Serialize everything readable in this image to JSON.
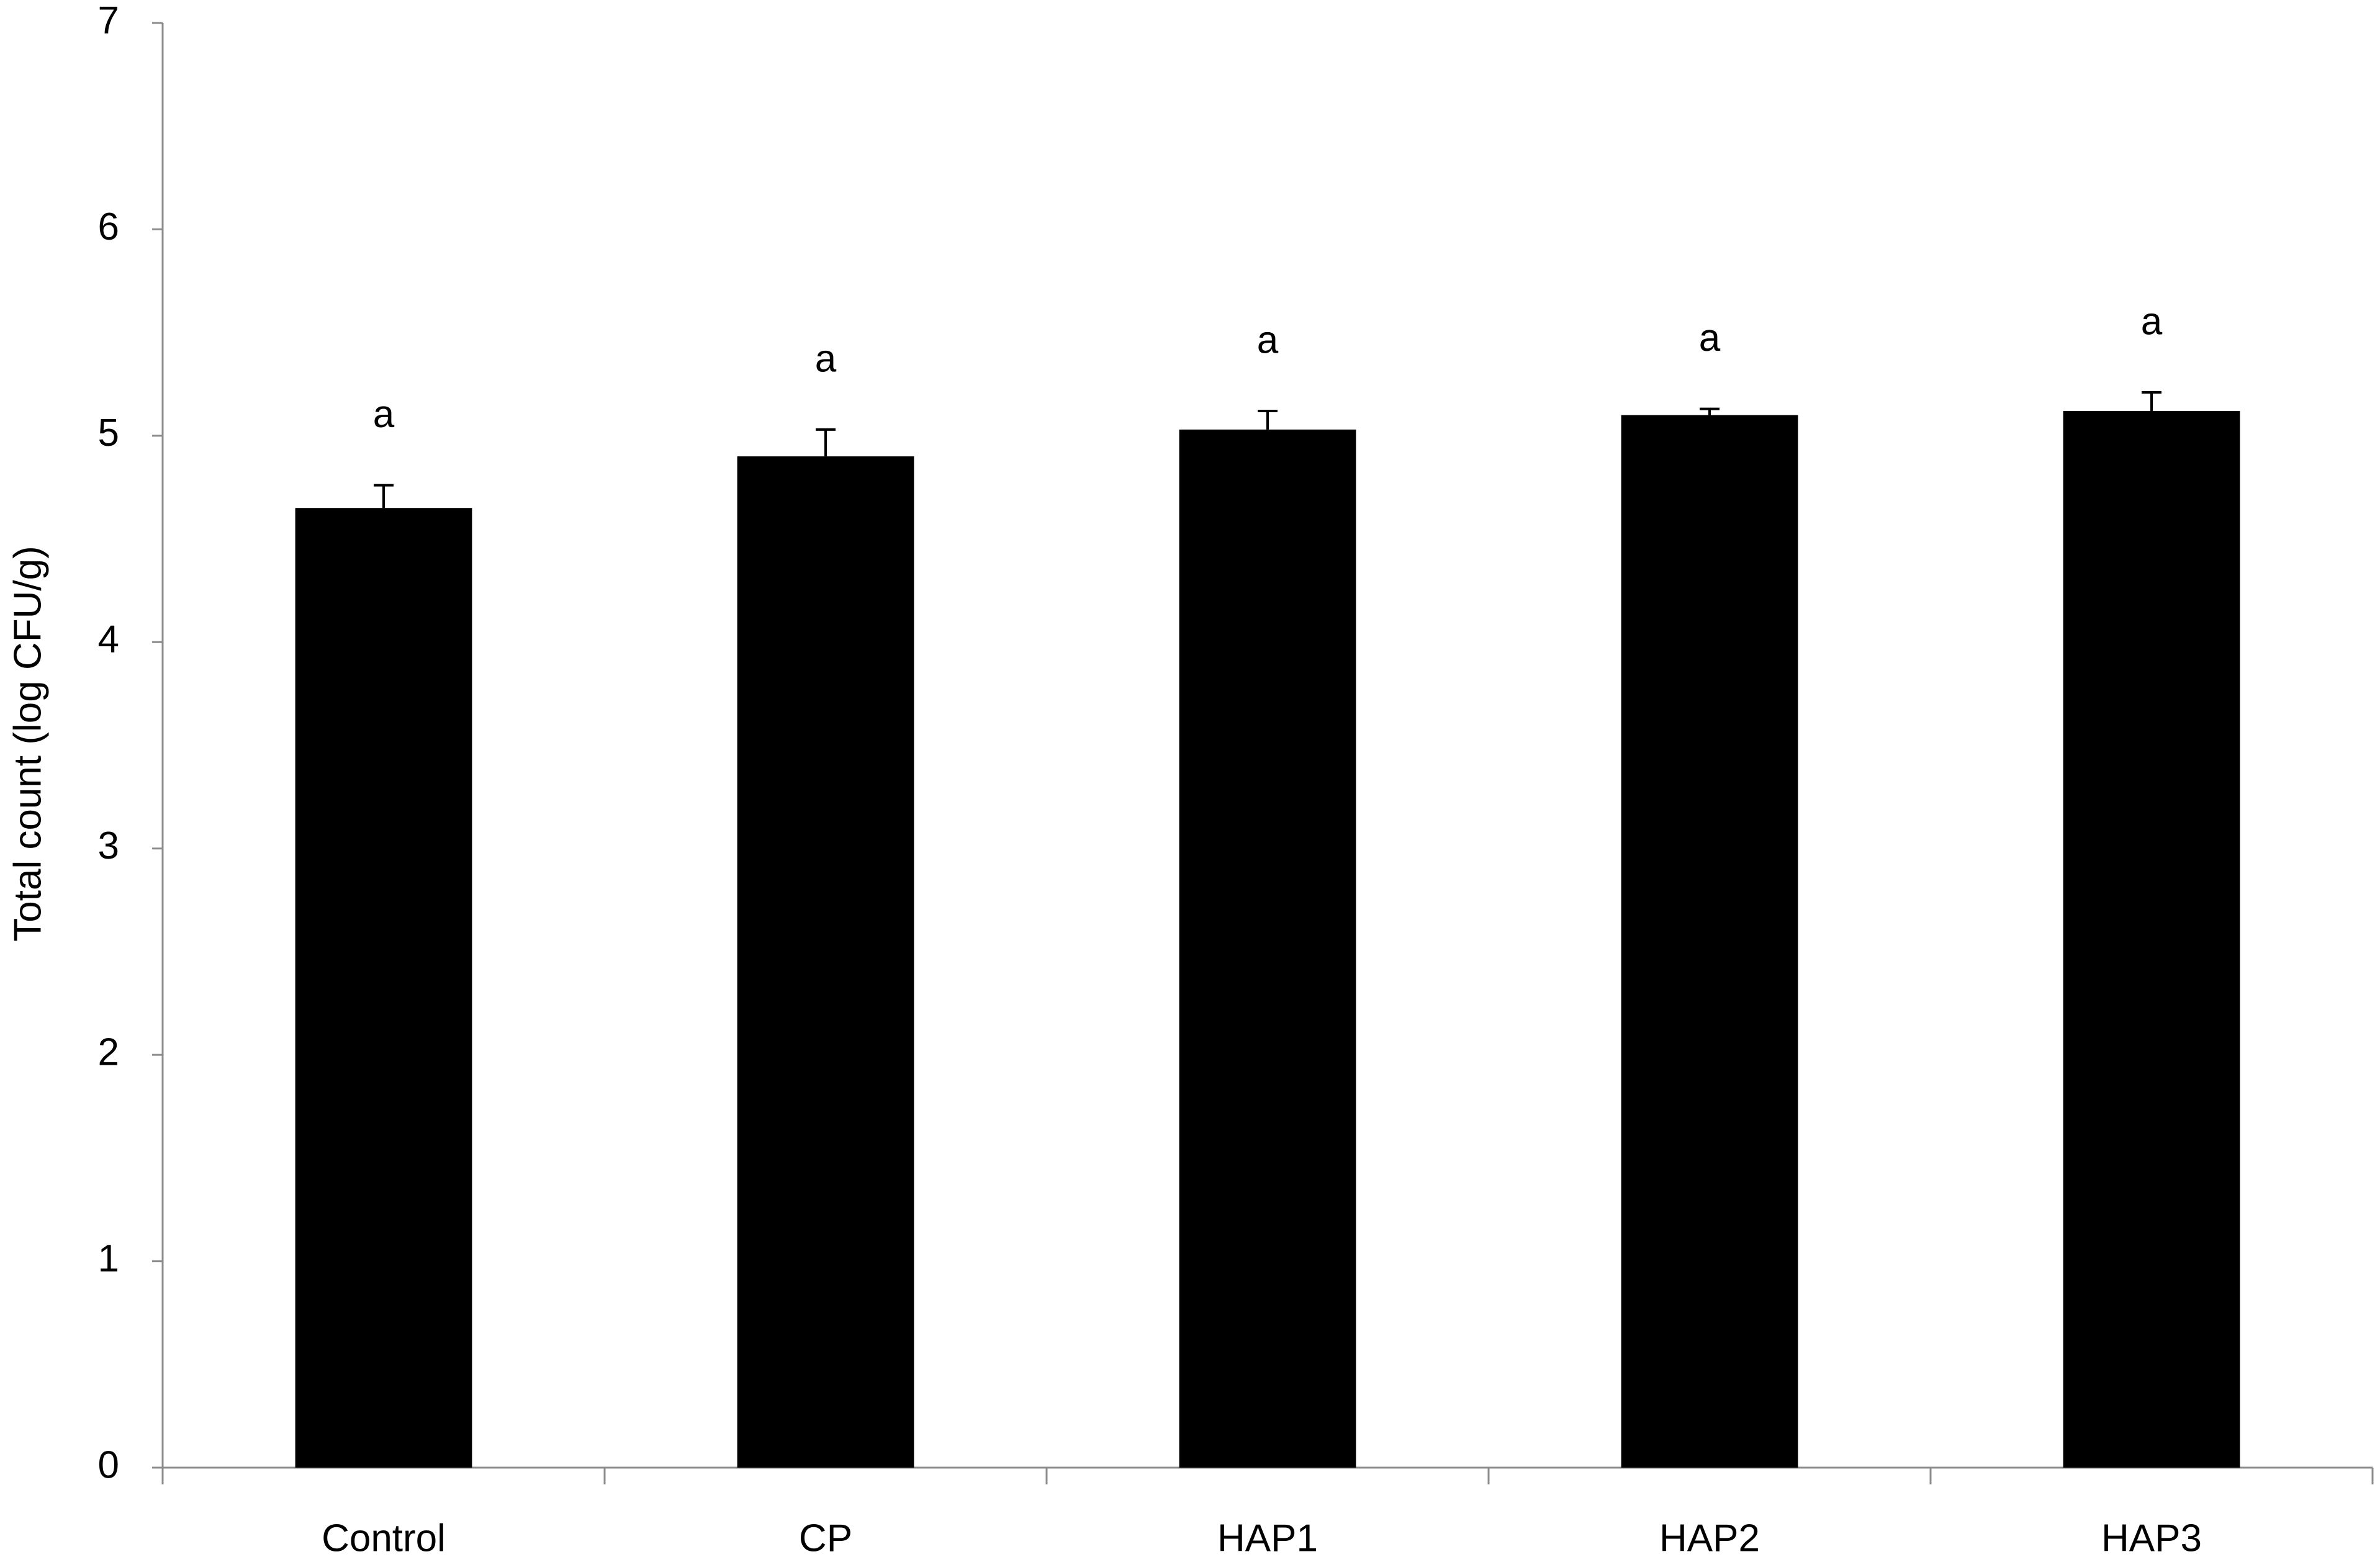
{
  "chart_data": {
    "type": "bar",
    "y_label": "Total count (log CFU/g)",
    "categories": [
      "Control",
      "CP",
      "HAP1",
      "HAP2",
      "HAP3"
    ],
    "values": [
      4.65,
      4.9,
      5.03,
      5.1,
      5.12
    ],
    "errors": [
      0.11,
      0.13,
      0.09,
      0.03,
      0.09
    ],
    "letters": [
      "a",
      "a",
      "a",
      "a",
      "a"
    ],
    "color": "#000000",
    "ylim": [
      0,
      7
    ],
    "yticks": [
      0,
      1,
      2,
      3,
      4,
      5,
      6,
      7
    ],
    "grid": false
  }
}
